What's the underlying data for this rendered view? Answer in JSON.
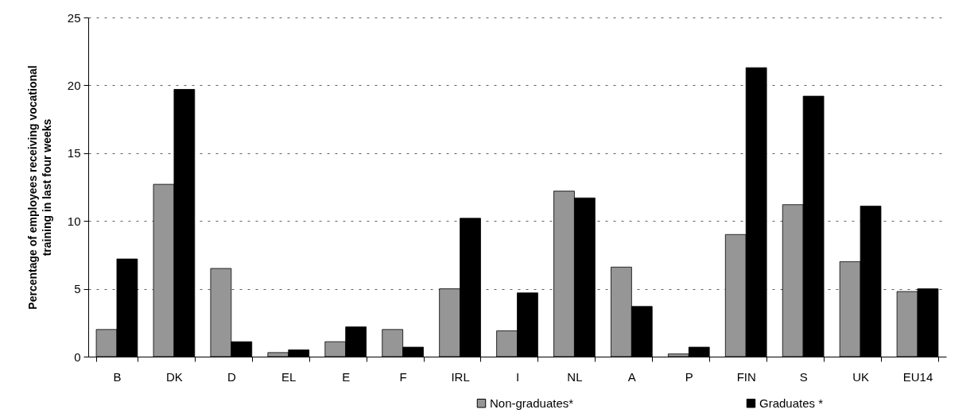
{
  "chart_data": {
    "type": "bar",
    "ylabel": "Percentage of employees receiving vocational training in last four weeks",
    "categories": [
      "B",
      "DK",
      "D",
      "EL",
      "E",
      "F",
      "IRL",
      "I",
      "NL",
      "A",
      "P",
      "FIN",
      "S",
      "UK",
      "EU14"
    ],
    "series": [
      {
        "name": "Non-graduates*",
        "color": "#969696",
        "values": [
          2.0,
          12.7,
          6.5,
          0.3,
          1.1,
          2.0,
          5.0,
          1.9,
          12.2,
          6.6,
          0.2,
          9.0,
          11.2,
          7.0,
          4.8
        ]
      },
      {
        "name": "Graduates *",
        "color": "#000000",
        "values": [
          7.2,
          19.7,
          1.1,
          0.5,
          2.2,
          0.7,
          10.2,
          4.7,
          11.7,
          3.7,
          0.7,
          21.3,
          19.2,
          11.1,
          5.0
        ]
      }
    ],
    "ylim": [
      0,
      25
    ],
    "yticks": [
      0,
      5,
      10,
      15,
      20,
      25
    ],
    "grid": "y",
    "legend": "bottom"
  }
}
